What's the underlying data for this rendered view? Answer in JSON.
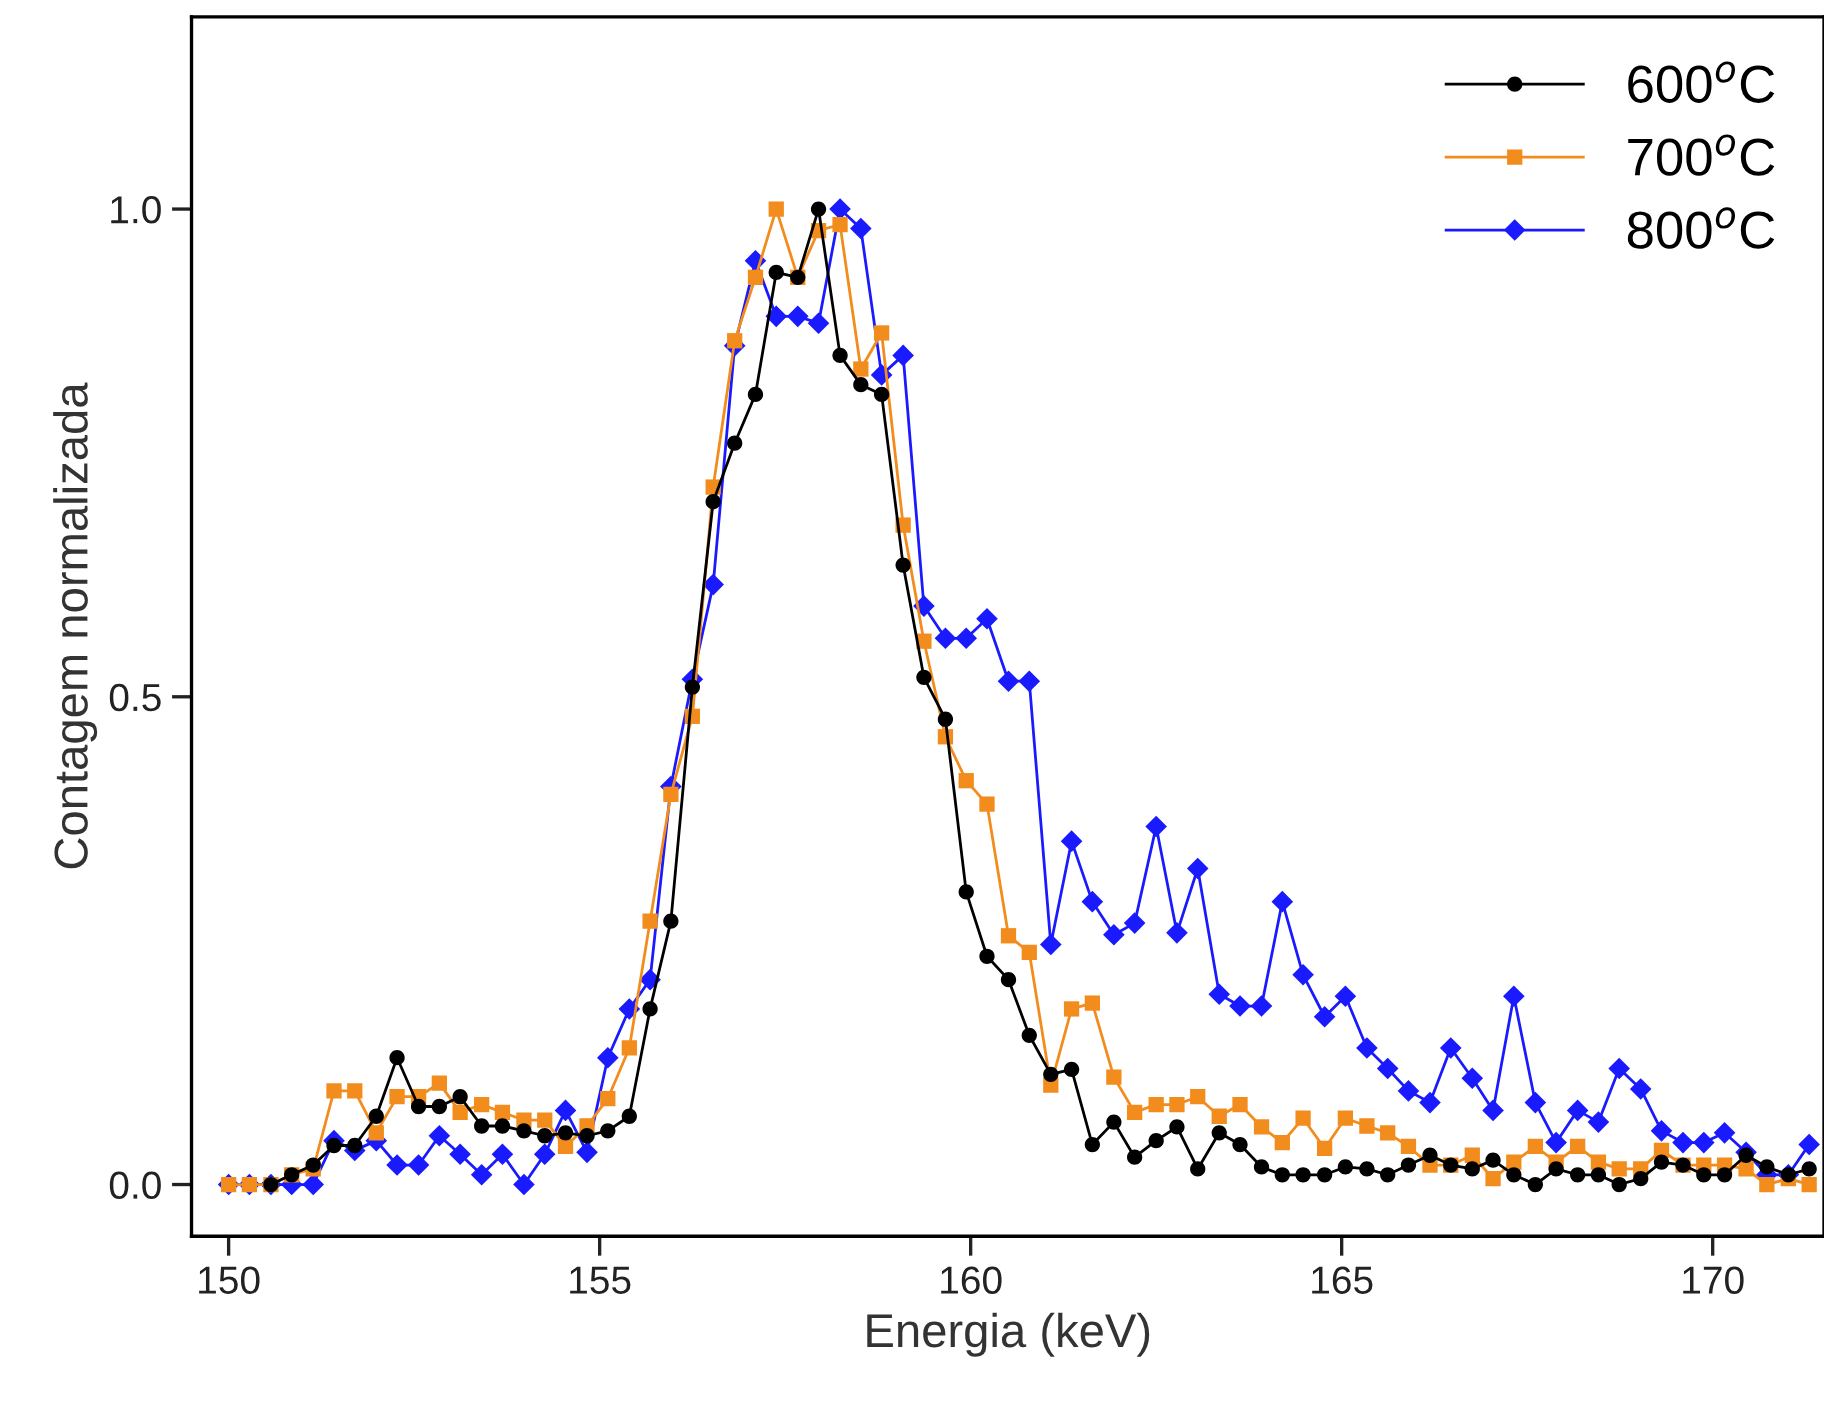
{
  "chart_data": {
    "type": "line",
    "xlabel": "Energia (keV)",
    "ylabel": "Contagem normalizada",
    "x": [
      150.0,
      150.28,
      150.57,
      150.85,
      151.14,
      151.42,
      151.7,
      151.99,
      152.27,
      152.56,
      152.84,
      153.12,
      153.41,
      153.69,
      153.98,
      154.26,
      154.54,
      154.83,
      155.11,
      155.4,
      155.68,
      155.96,
      156.25,
      156.53,
      156.82,
      157.1,
      157.38,
      157.67,
      157.95,
      158.24,
      158.52,
      158.8,
      159.09,
      159.37,
      159.66,
      159.94,
      160.22,
      160.51,
      160.79,
      161.08,
      161.36,
      161.64,
      161.93,
      162.21,
      162.5,
      162.78,
      163.06,
      163.35,
      163.63,
      163.92,
      164.2,
      164.48,
      164.77,
      165.05,
      165.34,
      165.62,
      165.9,
      166.19,
      166.47,
      166.76,
      167.04,
      167.32,
      167.61,
      167.89,
      168.18,
      168.46,
      168.74,
      169.03,
      169.31,
      169.6,
      169.88,
      170.16,
      170.45,
      170.73,
      171.02,
      171.3
    ],
    "series": [
      {
        "name": "600$^{o}$C",
        "color": "#000000",
        "marker": "circle",
        "values": [
          null,
          null,
          0,
          0.01,
          0.02,
          0.04,
          0.04,
          0.07,
          0.13,
          0.08,
          0.08,
          0.09,
          0.06,
          0.06,
          0.055,
          0.05,
          0.053,
          0.05,
          0.055,
          0.07,
          0.18,
          0.27,
          0.51,
          0.7,
          0.76,
          0.81,
          0.935,
          0.93,
          1.0,
          0.85,
          0.82,
          0.81,
          0.635,
          0.52,
          0.477,
          0.3,
          0.234,
          0.21,
          0.153,
          0.113,
          0.118,
          0.041,
          0.064,
          0.028,
          0.045,
          0.059,
          0.016,
          0.053,
          0.041,
          0.018,
          0.01,
          0.01,
          0.01,
          0.018,
          0.016,
          0.01,
          0.02,
          0.03,
          0.02,
          0.016,
          0.025,
          0.01,
          0.0,
          0.016,
          0.01,
          0.01,
          0.0,
          0.006,
          0.023,
          0.02,
          0.01,
          0.01,
          0.03,
          0.018,
          0.01,
          0.016
        ]
      },
      {
        "name": "700$^{o}$C",
        "color": "#f28c1c",
        "marker": "square",
        "values": [
          0,
          0,
          0,
          0.01,
          0.016,
          0.096,
          0.096,
          0.053,
          0.09,
          0.09,
          0.104,
          0.074,
          0.082,
          0.074,
          0.066,
          0.066,
          0.039,
          0.06,
          0.088,
          0.14,
          0.27,
          0.4,
          0.48,
          0.715,
          0.865,
          0.93,
          1.0,
          0.93,
          0.978,
          0.984,
          0.836,
          0.873,
          0.676,
          0.557,
          0.459,
          0.414,
          0.39,
          0.255,
          0.238,
          0.102,
          0.18,
          0.186,
          0.11,
          0.074,
          0.082,
          0.082,
          0.09,
          0.07,
          0.082,
          0.059,
          0.043,
          0.068,
          0.037,
          0.068,
          0.06,
          0.053,
          0.039,
          0.02,
          0.02,
          0.03,
          0.006,
          0.023,
          0.039,
          0.023,
          0.039,
          0.023,
          0.016,
          0.016,
          0.035,
          0.02,
          0.02,
          0.02,
          0.016,
          0.0,
          0.006,
          0.0
        ]
      },
      {
        "name": "800$^{o}$C",
        "color": "#1a1aff",
        "marker": "diamond",
        "values": [
          0,
          0,
          0,
          0,
          0,
          0.045,
          0.035,
          0.045,
          0.02,
          0.02,
          0.05,
          0.031,
          0.01,
          0.031,
          0.0,
          0.031,
          0.076,
          0.033,
          0.13,
          0.18,
          0.21,
          0.408,
          0.518,
          0.615,
          0.86,
          0.947,
          0.89,
          0.89,
          0.883,
          1.0,
          0.98,
          0.83,
          0.85,
          0.593,
          0.56,
          0.56,
          0.58,
          0.516,
          0.516,
          0.246,
          0.352,
          0.29,
          0.256,
          0.268,
          0.367,
          0.258,
          0.324,
          0.195,
          0.183,
          0.183,
          0.29,
          0.215,
          0.172,
          0.193,
          0.14,
          0.119,
          0.096,
          0.084,
          0.14,
          0.109,
          0.076,
          0.193,
          0.084,
          0.043,
          0.076,
          0.064,
          0.119,
          0.098,
          0.055,
          0.043,
          0.043,
          0.053,
          0.033,
          0.01,
          0.01,
          0.041
        ]
      }
    ],
    "xlim": [
      149.5,
      171.5
    ],
    "ylim": [
      -0.053,
      1.197
    ],
    "xticks": [
      150,
      155,
      160,
      165,
      170
    ],
    "yticks": [
      {
        "value": 0,
        "label": "0.0"
      },
      {
        "value": 0.5,
        "label": "0.5"
      },
      {
        "value": 1.0,
        "label": "1.0"
      }
    ],
    "grid": false,
    "legend": "top right",
    "line_style": "solid"
  }
}
